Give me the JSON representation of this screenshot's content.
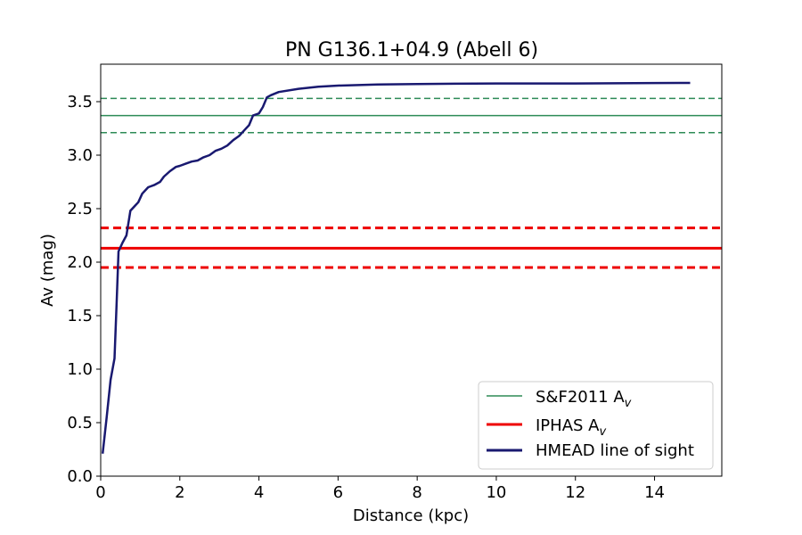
{
  "chart_data": {
    "type": "line",
    "title": "PN G136.1+04.9 (Abell 6)",
    "xlabel": "Distance (kpc)",
    "ylabel": "Av (mag)",
    "xlim": [
      0,
      15.7
    ],
    "ylim": [
      0,
      3.85
    ],
    "xticks": [
      0,
      2,
      4,
      6,
      8,
      10,
      12,
      14
    ],
    "yticks": [
      0.0,
      0.5,
      1.0,
      1.5,
      2.0,
      2.5,
      3.0,
      3.5
    ],
    "xtick_labels": [
      "0",
      "2",
      "4",
      "6",
      "8",
      "10",
      "12",
      "14"
    ],
    "ytick_labels": [
      "0.0",
      "0.5",
      "1.0",
      "1.5",
      "2.0",
      "2.5",
      "3.0",
      "3.5"
    ],
    "grid": false,
    "legend_position": "lower-right",
    "horizontal_lines": [
      {
        "name": "S&F2011 A",
        "subscript": "v",
        "value": 3.37,
        "lower": 3.21,
        "upper": 3.53,
        "color": "#2e8b57"
      },
      {
        "name": "IPHAS A",
        "subscript": "v",
        "value": 2.13,
        "lower": 1.95,
        "upper": 2.32,
        "color": "#ee0000"
      }
    ],
    "series": [
      {
        "name": "HMEAD line of sight",
        "color": "#191970",
        "x": [
          0.05,
          0.15,
          0.25,
          0.35,
          0.4,
          0.45,
          0.55,
          0.65,
          0.75,
          0.85,
          0.95,
          1.05,
          1.2,
          1.35,
          1.5,
          1.6,
          1.75,
          1.9,
          2.0,
          2.15,
          2.3,
          2.45,
          2.6,
          2.75,
          2.9,
          3.05,
          3.2,
          3.35,
          3.5,
          3.65,
          3.75,
          3.85,
          4.0,
          4.1,
          4.2,
          4.3,
          4.5,
          5.0,
          5.5,
          6.0,
          7.0,
          8.0,
          10.0,
          12.0,
          13.0,
          14.0,
          14.9
        ],
        "y": [
          0.21,
          0.55,
          0.9,
          1.1,
          1.6,
          2.1,
          2.18,
          2.25,
          2.48,
          2.52,
          2.56,
          2.64,
          2.7,
          2.72,
          2.75,
          2.8,
          2.85,
          2.89,
          2.9,
          2.92,
          2.94,
          2.95,
          2.98,
          3.0,
          3.04,
          3.06,
          3.09,
          3.14,
          3.18,
          3.24,
          3.28,
          3.37,
          3.39,
          3.45,
          3.54,
          3.56,
          3.59,
          3.62,
          3.64,
          3.65,
          3.66,
          3.665,
          3.67,
          3.67,
          3.672,
          3.674,
          3.675
        ]
      }
    ]
  }
}
